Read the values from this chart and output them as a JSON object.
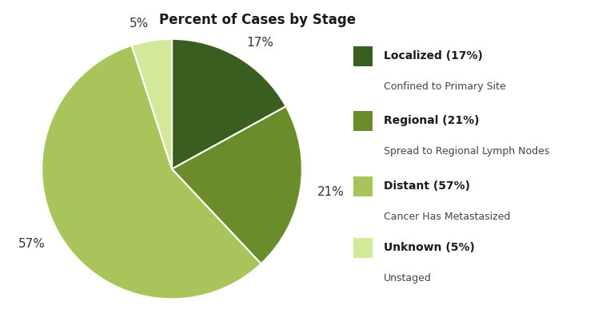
{
  "title": "Percent of Cases by Stage",
  "slices": [
    17,
    21,
    57,
    5
  ],
  "labels": [
    "17%",
    "21%",
    "57%",
    "5%"
  ],
  "colors": [
    "#3a5e1f",
    "#6b8c2a",
    "#a8c45a",
    "#d4e89a"
  ],
  "legend_entries": [
    {
      "label_bold": "Localized (17%)",
      "label_sub": "Confined to Primary Site",
      "color": "#3a5e1f"
    },
    {
      "label_bold": "Regional (21%)",
      "label_sub": "Spread to Regional Lymph Nodes",
      "color": "#6b8c2a"
    },
    {
      "label_bold": "Distant (57%)",
      "label_sub": "Cancer Has Metastasized",
      "color": "#a8c45a"
    },
    {
      "label_bold": "Unknown (5%)",
      "label_sub": "Unstaged",
      "color": "#d4e89a"
    }
  ],
  "startangle": 90,
  "background_color": "#ffffff",
  "title_fontsize": 12,
  "label_fontsize": 11
}
